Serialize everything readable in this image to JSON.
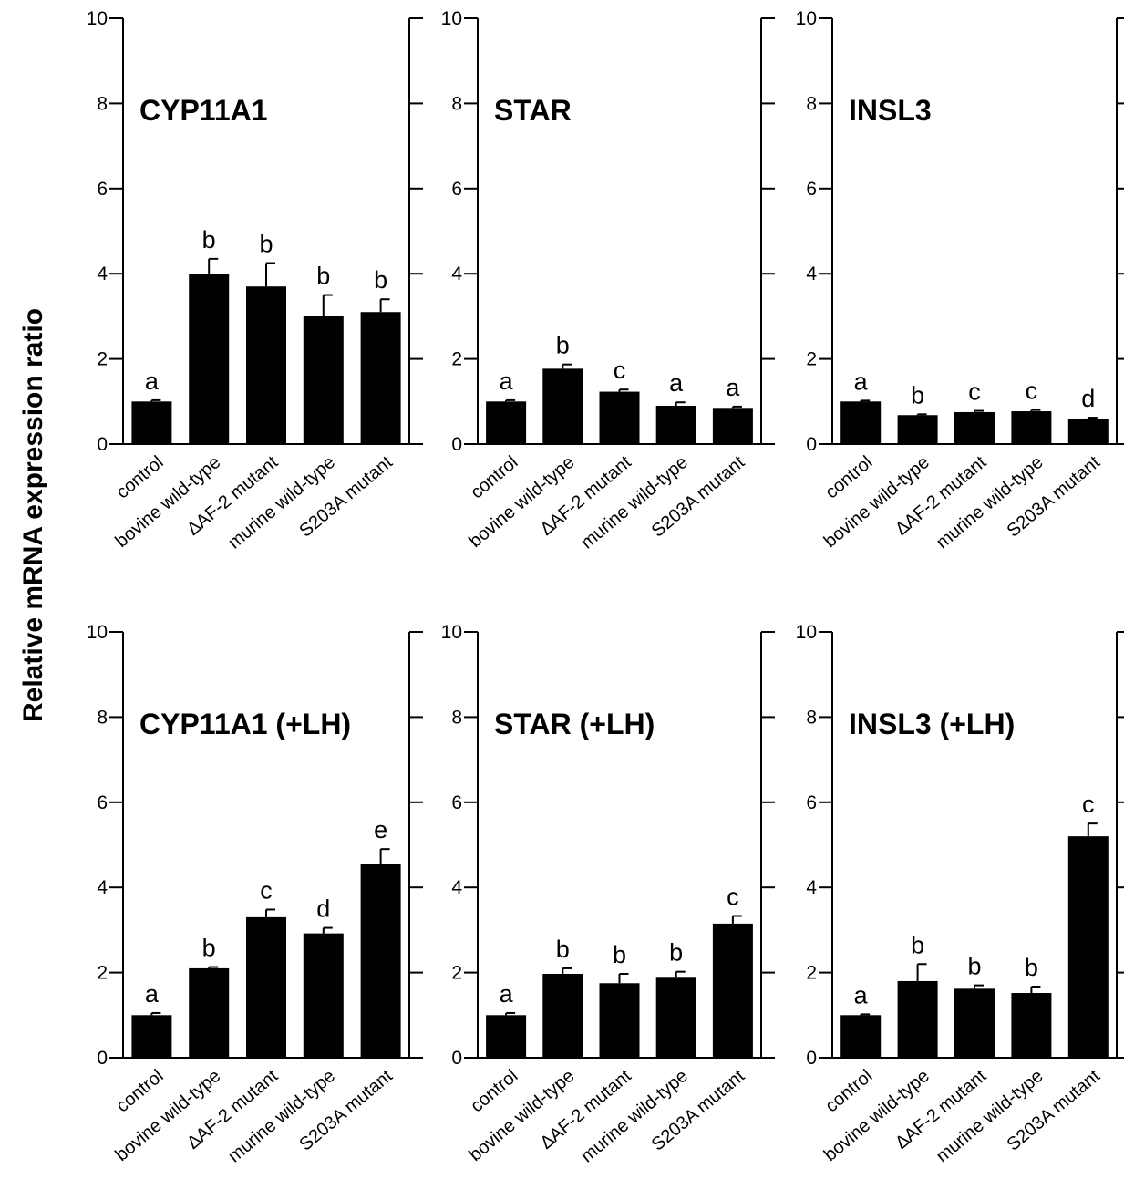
{
  "figure": {
    "ylabel": "Relative mRNA expression ratio"
  },
  "chart_data": [
    {
      "type": "bar",
      "title": "CYP11A1",
      "ylim": [
        0,
        10
      ],
      "yticks": [
        0,
        2,
        4,
        6,
        8,
        10
      ],
      "categories": [
        "control",
        "bovine wild-type",
        "∆AF-2 mutant",
        "murine wild-type",
        "S203A mutant"
      ],
      "values": [
        1.0,
        4.0,
        3.7,
        3.0,
        3.1
      ],
      "errors": [
        0.03,
        0.35,
        0.55,
        0.5,
        0.3
      ],
      "letters": [
        "a",
        "b",
        "b",
        "b",
        "b"
      ]
    },
    {
      "type": "bar",
      "title": "STAR",
      "ylim": [
        0,
        10
      ],
      "yticks": [
        0,
        2,
        4,
        6,
        8,
        10
      ],
      "categories": [
        "control",
        "bovine wild-type",
        "∆AF-2 mutant",
        "murine wild-type",
        "S203A mutant"
      ],
      "values": [
        1.0,
        1.77,
        1.23,
        0.9,
        0.85
      ],
      "errors": [
        0.03,
        0.1,
        0.05,
        0.08,
        0.03
      ],
      "letters": [
        "a",
        "b",
        "c",
        "a",
        "a"
      ]
    },
    {
      "type": "bar",
      "title": "INSL3",
      "ylim": [
        0,
        10
      ],
      "yticks": [
        0,
        2,
        4,
        6,
        8,
        10
      ],
      "categories": [
        "control",
        "bovine wild-type",
        "∆AF-2 mutant",
        "murine wild-type",
        "S203A mutant"
      ],
      "values": [
        1.0,
        0.68,
        0.75,
        0.77,
        0.6
      ],
      "errors": [
        0.02,
        0.02,
        0.03,
        0.03,
        0.02
      ],
      "letters": [
        "a",
        "b",
        "c",
        "c",
        "d"
      ]
    },
    {
      "type": "bar",
      "title": "CYP11A1 (+LH)",
      "ylim": [
        0,
        10
      ],
      "yticks": [
        0,
        2,
        4,
        6,
        8,
        10
      ],
      "categories": [
        "control",
        "bovine wild-type",
        "∆AF-2 mutant",
        "murine wild-type",
        "S203A mutant"
      ],
      "values": [
        1.0,
        2.1,
        3.3,
        2.92,
        4.55
      ],
      "errors": [
        0.05,
        0.03,
        0.18,
        0.13,
        0.35
      ],
      "letters": [
        "a",
        "b",
        "c",
        "d",
        "e"
      ]
    },
    {
      "type": "bar",
      "title": "STAR (+LH)",
      "ylim": [
        0,
        10
      ],
      "yticks": [
        0,
        2,
        4,
        6,
        8,
        10
      ],
      "categories": [
        "control",
        "bovine wild-type",
        "∆AF-2 mutant",
        "murine wild-type",
        "S203A mutant"
      ],
      "values": [
        1.0,
        1.97,
        1.75,
        1.9,
        3.15
      ],
      "errors": [
        0.05,
        0.13,
        0.22,
        0.12,
        0.18
      ],
      "letters": [
        "a",
        "b",
        "b",
        "b",
        "c"
      ]
    },
    {
      "type": "bar",
      "title": "INSL3 (+LH)",
      "ylim": [
        0,
        10
      ],
      "yticks": [
        0,
        2,
        4,
        6,
        8,
        10
      ],
      "categories": [
        "control",
        "bovine wild-type",
        "∆AF-2 mutant",
        "murine wild-type",
        "S203A mutant"
      ],
      "values": [
        1.0,
        1.8,
        1.62,
        1.52,
        5.2
      ],
      "errors": [
        0.02,
        0.4,
        0.08,
        0.15,
        0.3
      ],
      "letters": [
        "a",
        "b",
        "b",
        "b",
        "c"
      ]
    }
  ]
}
